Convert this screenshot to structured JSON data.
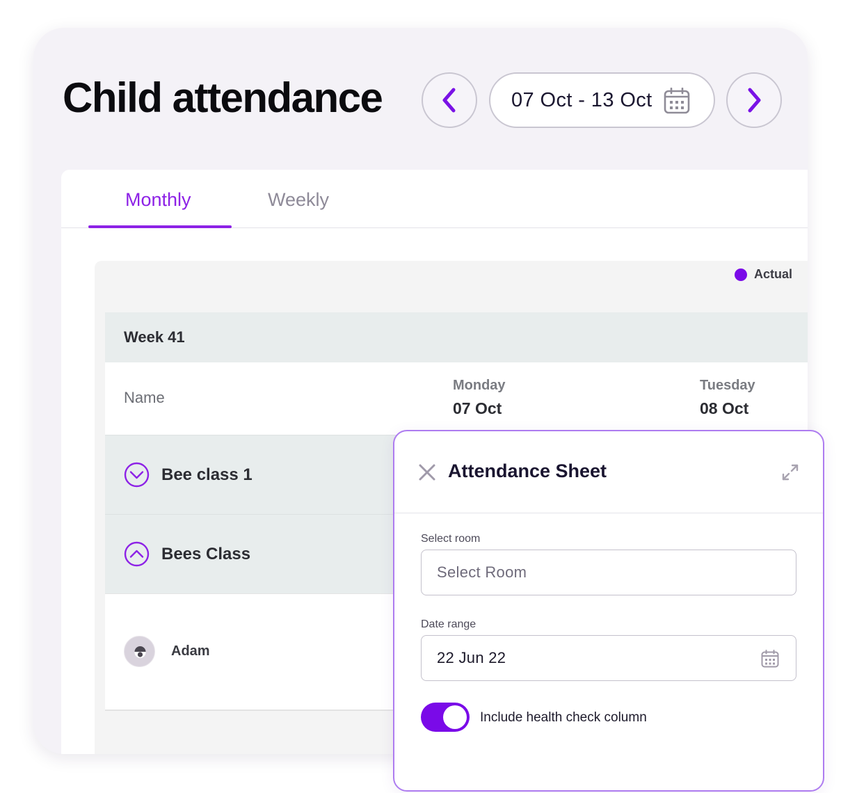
{
  "header": {
    "title": "Child attendance",
    "date_range": "07 Oct - 13 Oct",
    "prev_icon": "chevron-left-icon",
    "next_icon": "chevron-right-icon",
    "calendar_icon": "calendar-icon"
  },
  "tabs": [
    {
      "label": "Monthly",
      "active": true
    },
    {
      "label": "Weekly",
      "active": false
    }
  ],
  "legend": {
    "label": "Actual",
    "color": "#7a0ae8"
  },
  "table": {
    "week_label": "Week 41",
    "name_header": "Name",
    "days": [
      {
        "name": "Monday",
        "date": "07 Oct"
      },
      {
        "name": "Tuesday",
        "date": "08 Oct"
      }
    ],
    "groups": [
      {
        "label": "Bee class 1",
        "state": "collapsed",
        "icon": "chevron-down-circle-icon"
      },
      {
        "label": "Bees Class",
        "state": "expanded",
        "icon": "chevron-up-circle-icon"
      }
    ],
    "children": [
      {
        "name": "Adam"
      }
    ]
  },
  "sheet": {
    "title": "Attendance Sheet",
    "close_icon": "close-icon",
    "expand_icon": "expand-icon",
    "room_label": "Select room",
    "room_placeholder": "Select Room",
    "date_label": "Date range",
    "date_value": "22 Jun 22",
    "toggle_label": "Include health check column",
    "toggle_on": true
  },
  "colors": {
    "accent": "#8d22e6",
    "toggle": "#7a0ae8",
    "background": "#f4f2f7"
  }
}
